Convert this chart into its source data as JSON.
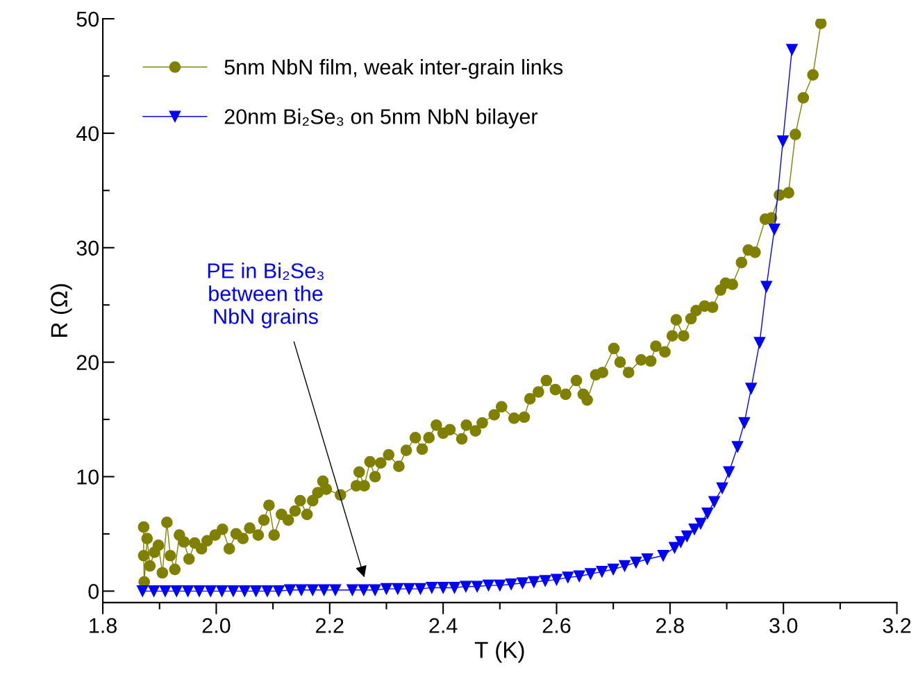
{
  "chart_data": {
    "type": "line",
    "xlabel": "T (K)",
    "ylabel": "R (Ω)",
    "xlim": [
      1.8,
      3.2
    ],
    "xticks": [
      1.8,
      {
        "value": 2.0,
        "label": "2.0"
      },
      2.2,
      2.4,
      2.6,
      2.8,
      {
        "value": 3.0,
        "label": "3.0"
      },
      3.2
    ],
    "ylim": [
      -1,
      50
    ],
    "yticks": [
      0,
      10,
      20,
      30,
      40,
      50
    ],
    "grid": false,
    "legend": "top left",
    "line_style": "solid",
    "series": [
      {
        "name": "5nm NbN film, weak inter-grain links",
        "color": "#808000",
        "marker": "circle",
        "x": [
          1.872,
          1.872,
          1.873,
          1.878,
          1.883,
          1.891,
          1.898,
          1.905,
          1.913,
          1.919,
          1.927,
          1.935,
          1.943,
          1.952,
          1.962,
          1.974,
          1.984,
          1.998,
          2.011,
          2.023,
          2.035,
          2.047,
          2.059,
          2.074,
          2.084,
          2.093,
          2.102,
          2.115,
          2.127,
          2.139,
          2.148,
          2.16,
          2.17,
          2.179,
          2.188,
          2.194,
          2.219,
          2.247,
          2.252,
          2.261,
          2.271,
          2.28,
          2.29,
          2.304,
          2.322,
          2.335,
          2.351,
          2.363,
          2.375,
          2.388,
          2.4,
          2.412,
          2.433,
          2.441,
          2.457,
          2.469,
          2.49,
          2.503,
          2.525,
          2.543,
          2.553,
          2.568,
          2.582,
          2.598,
          2.616,
          2.635,
          2.647,
          2.654,
          2.669,
          2.681,
          2.701,
          2.712,
          2.727,
          2.749,
          2.766,
          2.775,
          2.791,
          2.804,
          2.811,
          2.824,
          2.837,
          2.846,
          2.861,
          2.875,
          2.889,
          2.898,
          2.91,
          2.926,
          2.938,
          2.95,
          2.968,
          2.979,
          2.993,
          3.009,
          3.021,
          3.035,
          3.052,
          3.066
        ],
        "values": [
          5.6,
          3.1,
          0.8,
          4.6,
          2.2,
          3.4,
          4.0,
          1.6,
          6.0,
          3.1,
          1.9,
          4.9,
          4.3,
          2.8,
          4.2,
          3.7,
          4.4,
          4.9,
          5.4,
          3.7,
          5.0,
          4.6,
          5.5,
          4.9,
          6.2,
          7.5,
          4.9,
          6.7,
          6.2,
          7.0,
          7.9,
          6.7,
          7.9,
          8.6,
          9.6,
          8.9,
          8.4,
          9.2,
          10.4,
          9.2,
          11.3,
          10.0,
          11.2,
          11.9,
          10.9,
          12.3,
          13.4,
          12.4,
          13.4,
          14.5,
          13.8,
          14.1,
          13.3,
          14.5,
          14.0,
          14.7,
          15.4,
          16.1,
          15.1,
          15.2,
          16.8,
          17.4,
          18.4,
          17.6,
          17.2,
          18.4,
          17.2,
          16.7,
          18.9,
          19.1,
          21.2,
          20.0,
          19.1,
          20.2,
          20.1,
          21.4,
          20.9,
          22.3,
          23.7,
          22.3,
          23.8,
          24.5,
          24.9,
          24.8,
          26.3,
          26.9,
          26.8,
          28.7,
          29.8,
          29.6,
          32.5,
          32.6,
          34.6,
          34.8,
          39.9,
          43.1,
          45.1,
          49.6
        ]
      },
      {
        "name": "20nm Bi₂Se₃ on 5nm NbN bilayer",
        "color": "#0000ff",
        "marker": "triangle",
        "x": [
          1.87,
          1.89,
          1.91,
          1.93,
          1.95,
          1.97,
          1.99,
          2.01,
          2.03,
          2.05,
          2.07,
          2.09,
          2.11,
          2.13,
          2.15,
          2.17,
          2.19,
          2.21,
          2.24,
          2.26,
          2.28,
          2.3,
          2.32,
          2.34,
          2.36,
          2.38,
          2.4,
          2.42,
          2.44,
          2.46,
          2.48,
          2.5,
          2.52,
          2.54,
          2.56,
          2.58,
          2.6,
          2.62,
          2.64,
          2.66,
          2.68,
          2.7,
          2.72,
          2.74,
          2.76,
          2.788,
          2.808,
          2.819,
          2.83,
          2.843,
          2.854,
          2.866,
          2.878,
          2.892,
          2.904,
          2.919,
          2.931,
          2.943,
          2.958,
          2.97,
          2.984,
          2.999,
          3.015
        ],
        "values": [
          0.0,
          0.0,
          0.0,
          0.0,
          0.0,
          0.0,
          0.0,
          0.0,
          0.0,
          0.0,
          0.0,
          0.0,
          0.0,
          0.1,
          0.1,
          0.1,
          0.1,
          0.1,
          0.1,
          0.1,
          0.1,
          0.2,
          0.2,
          0.2,
          0.2,
          0.3,
          0.3,
          0.3,
          0.4,
          0.4,
          0.5,
          0.5,
          0.6,
          0.7,
          0.8,
          0.9,
          1.0,
          1.2,
          1.3,
          1.5,
          1.7,
          1.9,
          2.2,
          2.5,
          2.8,
          3.1,
          3.8,
          4.3,
          4.8,
          5.4,
          5.9,
          6.8,
          7.8,
          9.0,
          10.4,
          12.6,
          14.7,
          17.7,
          21.7,
          26.6,
          31.6,
          39.3,
          47.3
        ]
      }
    ],
    "annotations": [
      "PE in Bi₂Se₃\nbetween the\nNbN grains"
    ]
  }
}
